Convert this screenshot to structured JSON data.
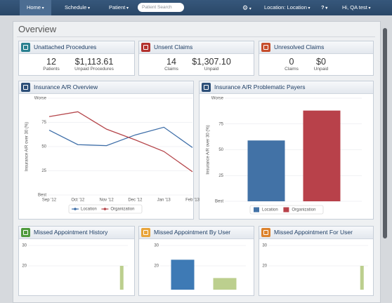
{
  "nav": {
    "home": "Home",
    "schedule": "Schedule",
    "patient": "Patient",
    "search": "Patient Search",
    "location": "Location: Location",
    "user": "Hi, QA test"
  },
  "page_title": "Overview",
  "cards": [
    {
      "title": "Unattached Procedures",
      "stats": [
        {
          "value": 12,
          "label": "Patients"
        },
        {
          "value": "$1,113.61",
          "label": "Unpaid Procedures"
        }
      ]
    },
    {
      "title": "Unsent Claims",
      "stats": [
        {
          "value": 14,
          "label": "Claims"
        },
        {
          "value": "$1,307.10",
          "label": "Unpaid"
        }
      ]
    },
    {
      "title": "Unresolved Claims",
      "stats": [
        {
          "value": 0,
          "label": "Claims"
        },
        {
          "value": "$0",
          "label": "Unpaid"
        }
      ]
    }
  ],
  "charts": [
    {
      "type": "line",
      "title": "Insurance A/R Overview",
      "y_label": "Insurance A/R over 30 (%)",
      "categories": [
        "Sep '12",
        "Oct '12",
        "Nov '12",
        "Dec '12",
        "Jan '13",
        "Feb '13"
      ],
      "series": [
        {
          "name": "Location",
          "color": "#3e6ea8",
          "values": [
            67,
            52,
            51,
            62,
            70,
            49
          ]
        },
        {
          "name": "Organization",
          "color": "#b5464b",
          "values": [
            81,
            86,
            68,
            57,
            45,
            24
          ]
        }
      ],
      "ylim": [
        0,
        100
      ],
      "yticks": [
        {
          "value": 0,
          "label": "Best"
        },
        25,
        50,
        75,
        {
          "value": 100,
          "label": "Worse"
        }
      ],
      "grid": true
    },
    {
      "type": "bar",
      "title": "Insurance A/R Problematic Payers",
      "y_label": "Insurance A/R over 30 (%)",
      "categories": [
        null
      ],
      "series": [
        {
          "name": "Location",
          "color": "#4272a6",
          "values": [
            59
          ]
        },
        {
          "name": "Organization",
          "color": "#b8414a",
          "values": [
            88
          ]
        }
      ],
      "ylim": [
        0,
        100
      ],
      "yticks": [
        {
          "value": 0,
          "label": "Best"
        },
        25,
        50,
        75,
        {
          "value": 100,
          "label": "Worse"
        }
      ],
      "grid": true
    },
    {
      "type": "bar",
      "title": "Missed Appointment History",
      "categories": [
        null,
        null,
        null,
        null,
        null,
        null,
        null,
        null
      ],
      "series": [
        {
          "color": "#bccf8e",
          "values": [
            null,
            null,
            null,
            null,
            null,
            null,
            null,
            20
          ]
        }
      ],
      "ylim": [
        0,
        30
      ],
      "yticks": [
        20,
        30
      ],
      "grid": true
    },
    {
      "type": "bar",
      "title": "Missed Appointment By User",
      "categories": [
        null,
        null
      ],
      "series": [
        {
          "color": "#3e7ab5",
          "values": [
            23,
            null
          ]
        },
        {
          "color": "#bccf8e",
          "values": [
            null,
            14
          ]
        }
      ],
      "ylim": [
        0,
        30
      ],
      "yticks": [
        20,
        30
      ],
      "grid": true
    },
    {
      "type": "bar",
      "title": "Missed Appointment For User",
      "categories": [
        null,
        null,
        null,
        null,
        null,
        null,
        null,
        null
      ],
      "series": [
        {
          "color": "#bccf8e",
          "values": [
            null,
            null,
            null,
            null,
            null,
            null,
            null,
            20
          ]
        }
      ],
      "ylim": [
        0,
        30
      ],
      "yticks": [
        20,
        30
      ],
      "grid": true
    }
  ]
}
